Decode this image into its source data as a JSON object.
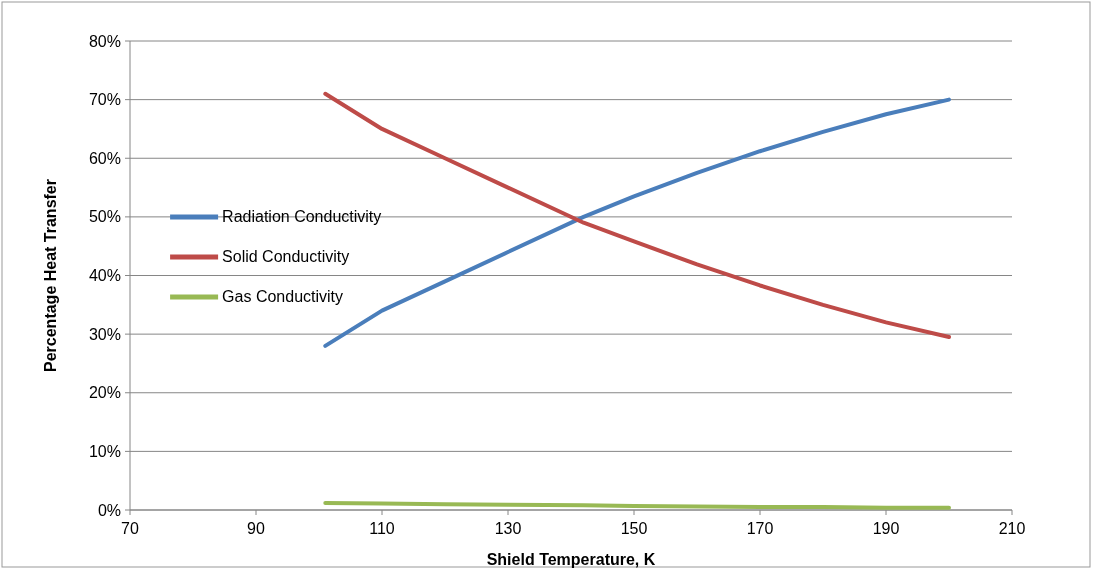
{
  "chart_data": {
    "type": "line",
    "xlabel": "Shield Temperature, K",
    "ylabel": "Percentage Heat Transfer",
    "x": [
      101,
      110,
      120,
      130,
      142,
      150,
      160,
      170,
      180,
      190,
      200
    ],
    "series": [
      {
        "name": "Radiation Conductivity",
        "color": "#4a7ebb",
        "values": [
          28,
          34,
          39,
          44,
          50,
          53.5,
          57.5,
          61.2,
          64.5,
          67.5,
          70
        ]
      },
      {
        "name": "Solid Conductivity",
        "color": "#be4b48",
        "values": [
          71,
          65,
          60,
          55,
          49,
          45.8,
          41.9,
          38.3,
          35,
          32,
          29.5
        ]
      },
      {
        "name": "Gas Conductivity",
        "color": "#98b954",
        "values": [
          1.2,
          1.1,
          1,
          0.9,
          0.8,
          0.7,
          0.6,
          0.5,
          0.5,
          0.4,
          0.4
        ]
      }
    ],
    "xlim": [
      70,
      210
    ],
    "xticks": [
      70,
      90,
      110,
      130,
      150,
      170,
      190,
      210
    ],
    "ylim": [
      0,
      80
    ],
    "yticks": [
      {
        "value": 0,
        "label": "0%"
      },
      {
        "value": 10,
        "label": "10%"
      },
      {
        "value": 20,
        "label": "20%"
      },
      {
        "value": 30,
        "label": "30%"
      },
      {
        "value": 40,
        "label": "40%"
      },
      {
        "value": 50,
        "label": "50%"
      },
      {
        "value": 60,
        "label": "60%"
      },
      {
        "value": 70,
        "label": "70%"
      },
      {
        "value": 80,
        "label": "80%"
      }
    ],
    "grid": "y",
    "legend": "left",
    "marker": "none",
    "line_style": "solid"
  }
}
